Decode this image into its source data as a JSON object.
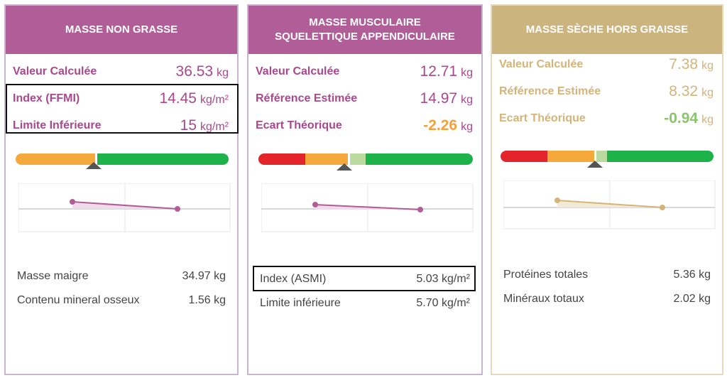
{
  "cards": [
    {
      "title": "MASSE NON GRASSE",
      "rows": [
        {
          "label": "Valeur Calculée",
          "value": "36.53",
          "unit": "kg"
        },
        {
          "label": "Index (FFMI)",
          "value": "14.45",
          "unit": "kg/m²"
        },
        {
          "label": "Limite Inférieure",
          "value": "15",
          "unit": "kg/m²"
        }
      ],
      "bottom": [
        {
          "label": "Masse maigre",
          "value": "34.97 kg"
        },
        {
          "label": "Contenu mineral osseux",
          "value": "1.56 kg"
        }
      ]
    },
    {
      "title_line1": "MASSE MUSCULAIRE",
      "title_line2": "SQUELETTIQUE APPENDICULAIRE",
      "rows": [
        {
          "label": "Valeur Calculée",
          "value": "12.71",
          "unit": "kg"
        },
        {
          "label": "Référence Estimée",
          "value": "14.97",
          "unit": "kg"
        },
        {
          "label": "Ecart Théorique",
          "value": "-2.26",
          "unit": "kg"
        }
      ],
      "bottom": [
        {
          "label": "Index (ASMI)",
          "value": "5.03 kg/m²"
        },
        {
          "label": "Limite inférieure",
          "value": "5.70 kg/m²"
        }
      ]
    },
    {
      "title": "MASSE SÈCHE HORS GRAISSE",
      "rows": [
        {
          "label": "Valeur Calculée",
          "value": "7.38",
          "unit": "kg"
        },
        {
          "label": "Référence Estimée",
          "value": "8.32",
          "unit": "kg"
        },
        {
          "label": "Ecart Théorique",
          "value": "-0.94",
          "unit": "kg"
        }
      ],
      "bottom": [
        {
          "label": "Protéines totales",
          "value": "5.36 kg"
        },
        {
          "label": "Minéraux totaux",
          "value": "2.02 kg"
        }
      ]
    }
  ],
  "colors": {
    "purple": "#b05d98",
    "gold": "#ccb47e",
    "red": "#e4242b",
    "orange": "#f5a93a",
    "light_green": "#bcd9a0",
    "green": "#1db34a"
  }
}
